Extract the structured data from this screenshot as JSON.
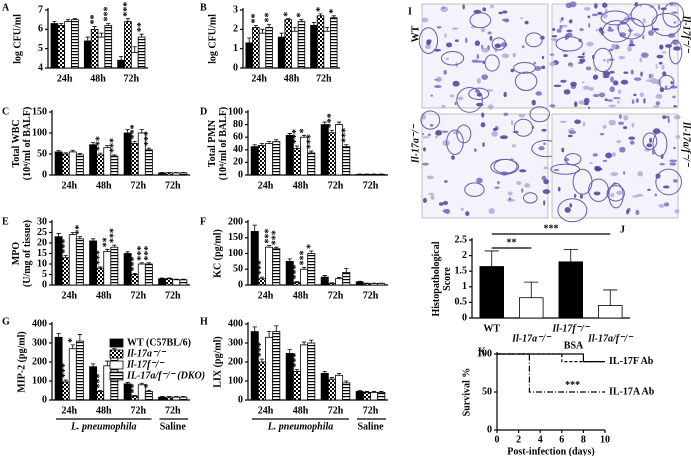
{
  "chart_data": [
    {
      "type": "bar",
      "label": "A",
      "y_label": [
        "log CFU/ml"
      ],
      "categories": [
        "24h",
        "48h",
        "72h"
      ],
      "ylim": [
        4,
        7
      ],
      "yticks": [
        4,
        5,
        6,
        7
      ],
      "series": [
        {
          "color": "#000000",
          "pattern": "solid",
          "values": [
            6.3,
            5.4,
            4.4
          ],
          "errors": [
            0.1,
            0.2,
            0.2
          ]
        },
        {
          "color": "#000000",
          "pattern": "check",
          "values": [
            6.2,
            6.0,
            6.4
          ],
          "errors": [
            0.1,
            0.15,
            0.15
          ],
          "stars": [
            null,
            "**",
            "***"
          ]
        },
        {
          "color": "#000000",
          "pattern": "none",
          "values": [
            6.4,
            5.6,
            4.8
          ],
          "errors": [
            0.1,
            0.2,
            0.3
          ]
        },
        {
          "color": "#000000",
          "pattern": "stripes",
          "values": [
            6.5,
            6.2,
            5.6
          ],
          "errors": [
            0.05,
            0.1,
            0.15
          ],
          "stars": [
            null,
            "***",
            "**"
          ]
        }
      ]
    },
    {
      "type": "bar",
      "label": "B",
      "y_label": [
        "log CFU/ml"
      ],
      "categories": [
        "24h",
        "48h",
        "72h"
      ],
      "ylim": [
        0,
        3
      ],
      "yticks": [
        0,
        1,
        2,
        3
      ],
      "series": [
        {
          "color": "#000000",
          "pattern": "solid",
          "values": [
            1.3,
            1.6,
            2.2
          ],
          "errors": [
            0.25,
            0.2,
            0.15
          ]
        },
        {
          "color": "#000000",
          "pattern": "check",
          "values": [
            2.1,
            2.5,
            2.7
          ],
          "errors": [
            0.1,
            0.05,
            0.1
          ],
          "stars": [
            "**",
            "*",
            "*"
          ]
        },
        {
          "color": "#000000",
          "pattern": "none",
          "values": [
            1.8,
            1.9,
            1.9
          ],
          "errors": [
            0.2,
            0.2,
            0.2
          ]
        },
        {
          "color": "#000000",
          "pattern": "stripes",
          "values": [
            2.1,
            2.4,
            2.6
          ],
          "errors": [
            0.15,
            0.1,
            0.1
          ],
          "stars": [
            "**",
            "*",
            "*"
          ]
        }
      ]
    },
    {
      "type": "bar",
      "label": "C",
      "y_label": [
        "Total WBC",
        "(10⁴/ml of BALF)"
      ],
      "categories": [
        "24h",
        "48h",
        "72h",
        "72h"
      ],
      "ylim": [
        0,
        150
      ],
      "yticks": [
        0,
        50,
        100,
        150
      ],
      "series": [
        {
          "color": "#000000",
          "pattern": "solid",
          "values": [
            55,
            72,
            100,
            5
          ],
          "errors": [
            3,
            5,
            8,
            1
          ]
        },
        {
          "color": "#000000",
          "pattern": "check",
          "values": [
            50,
            48,
            75,
            5
          ],
          "errors": [
            3,
            4,
            5,
            1
          ],
          "stars": [
            null,
            "***",
            "***",
            null
          ]
        },
        {
          "color": "#000000",
          "pattern": "none",
          "values": [
            55,
            65,
            100,
            5
          ],
          "errors": [
            4,
            5,
            8,
            1
          ]
        },
        {
          "color": "#000000",
          "pattern": "stripes",
          "values": [
            48,
            45,
            60,
            5
          ],
          "errors": [
            3,
            3,
            4,
            1
          ],
          "stars": [
            null,
            "***",
            "***",
            null
          ]
        }
      ]
    },
    {
      "type": "bar",
      "label": "D",
      "y_label": [
        "Total PMN",
        "(10⁴/ml of BALF)"
      ],
      "categories": [
        "24h",
        "48h",
        "72h",
        "72h"
      ],
      "ylim": [
        0,
        100
      ],
      "yticks": [
        0,
        20,
        40,
        60,
        80,
        100
      ],
      "series": [
        {
          "color": "#000000",
          "pattern": "solid",
          "values": [
            45,
            63,
            80,
            1
          ],
          "errors": [
            3,
            3,
            4,
            0.5
          ]
        },
        {
          "color": "#000000",
          "pattern": "check",
          "values": [
            47,
            42,
            67,
            1
          ],
          "errors": [
            3,
            4,
            4,
            0.5
          ],
          "stars": [
            null,
            "***",
            "***",
            null
          ]
        },
        {
          "color": "#000000",
          "pattern": "none",
          "values": [
            50,
            60,
            80,
            1
          ],
          "errors": [
            3,
            3,
            4,
            0.5
          ],
          "stars": [
            null,
            "*",
            null,
            null
          ]
        },
        {
          "color": "#000000",
          "pattern": "stripes",
          "values": [
            53,
            35,
            45,
            1
          ],
          "errors": [
            3,
            3,
            3,
            0.5
          ],
          "stars": [
            null,
            "***",
            "***",
            null
          ]
        }
      ]
    },
    {
      "type": "bar",
      "label": "E",
      "y_label": [
        "MPO",
        "(U/mg of tissue)"
      ],
      "categories": [
        "24h",
        "48h",
        "72h",
        "72h"
      ],
      "ylim": [
        0,
        30
      ],
      "yticks": [
        0,
        5,
        10,
        15,
        20,
        25,
        30
      ],
      "series": [
        {
          "color": "#000000",
          "pattern": "solid",
          "values": [
            23,
            21,
            15,
            3
          ],
          "errors": [
            1.5,
            1,
            0.8,
            0.3
          ]
        },
        {
          "color": "#000000",
          "pattern": "check",
          "values": [
            13,
            8,
            5,
            3
          ],
          "errors": [
            1,
            0.6,
            0.5,
            0.3
          ],
          "stars": [
            "***",
            "***",
            "***",
            null
          ]
        },
        {
          "color": "#000000",
          "pattern": "none",
          "values": [
            24,
            16,
            10,
            2.5
          ],
          "errors": [
            1,
            1,
            0.6,
            0.3
          ],
          "stars": [
            null,
            "**",
            "***",
            null
          ]
        },
        {
          "color": "#000000",
          "pattern": "stripes",
          "values": [
            22,
            18,
            10,
            2.5
          ],
          "errors": [
            1,
            1,
            0.6,
            0.3
          ],
          "stars": [
            "**",
            "***",
            "***",
            null
          ]
        }
      ]
    },
    {
      "type": "bar",
      "label": "F",
      "y_label": [
        "KC (pg/ml)"
      ],
      "categories": [
        "24h",
        "48h",
        "72h",
        "72h"
      ],
      "ylim": [
        0,
        200
      ],
      "yticks": [
        0,
        50,
        100,
        150,
        200
      ],
      "series": [
        {
          "color": "#000000",
          "pattern": "solid",
          "values": [
            170,
            75,
            25,
            10
          ],
          "errors": [
            20,
            8,
            5,
            2
          ]
        },
        {
          "color": "#000000",
          "pattern": "check",
          "values": [
            20,
            8,
            5,
            5
          ],
          "errors": [
            5,
            3,
            2,
            1
          ],
          "stars": [
            "***",
            "***",
            null,
            null
          ]
        },
        {
          "color": "#000000",
          "pattern": "none",
          "values": [
            120,
            50,
            20,
            5
          ],
          "errors": [
            5,
            6,
            4,
            1
          ],
          "stars": [
            "***",
            "***",
            null,
            null
          ]
        },
        {
          "color": "#000000",
          "pattern": "stripes",
          "values": [
            115,
            100,
            40,
            5
          ],
          "errors": [
            5,
            8,
            12,
            1
          ],
          "stars": [
            "***",
            "*",
            null,
            null
          ]
        }
      ]
    },
    {
      "type": "bar",
      "label": "G",
      "y_label": [
        "MIP-2 (pg/ml)"
      ],
      "categories": [
        "24h",
        "48h",
        "72h",
        "72h"
      ],
      "ylim": [
        0,
        400
      ],
      "yticks": [
        0,
        100,
        200,
        300,
        400
      ],
      "group_labels": [
        "L. pneumophila",
        "Saline"
      ],
      "legend": true,
      "series": [
        {
          "name": "WT (C57BL/6)",
          "color": "#000000",
          "pattern": "solid",
          "values": [
            330,
            175,
            85,
            15
          ],
          "errors": [
            20,
            15,
            8,
            3
          ]
        },
        {
          "name": "Il-17a⁻/⁻",
          "color": "#000000",
          "pattern": "check",
          "values": [
            95,
            45,
            20,
            15
          ],
          "errors": [
            10,
            5,
            4,
            3
          ],
          "stars": [
            "***",
            "***",
            "**",
            null
          ]
        },
        {
          "name": "Il-17f⁻/⁻",
          "color": "#000000",
          "pattern": "none",
          "values": [
            270,
            180,
            80,
            15
          ],
          "errors": [
            20,
            25,
            8,
            3
          ],
          "stars": [
            "*",
            null,
            null,
            null
          ]
        },
        {
          "name": "IL-17a/f⁻/⁻ (DKO)",
          "color": "#000000",
          "pattern": "stripes",
          "values": [
            310,
            230,
            45,
            15
          ],
          "errors": [
            35,
            40,
            6,
            3
          ],
          "stars": [
            null,
            null,
            "*",
            null
          ]
        }
      ]
    },
    {
      "type": "bar",
      "label": "H",
      "y_label": [
        "LIX (pg/ml)"
      ],
      "categories": [
        "24h",
        "48h",
        "72h",
        "72h"
      ],
      "ylim": [
        0,
        400
      ],
      "yticks": [
        0,
        100,
        200,
        300,
        400
      ],
      "group_labels": [
        "L. pneumophila",
        "Saline"
      ],
      "series": [
        {
          "color": "#000000",
          "pattern": "solid",
          "values": [
            360,
            245,
            140,
            45
          ],
          "errors": [
            25,
            20,
            10,
            5
          ]
        },
        {
          "color": "#000000",
          "pattern": "check",
          "values": [
            200,
            150,
            110,
            40
          ],
          "errors": [
            15,
            10,
            8,
            5
          ],
          "stars": [
            "***",
            "***",
            null,
            null
          ]
        },
        {
          "color": "#000000",
          "pattern": "none",
          "values": [
            330,
            290,
            130,
            40
          ],
          "errors": [
            30,
            15,
            10,
            5
          ]
        },
        {
          "color": "#000000",
          "pattern": "stripes",
          "values": [
            360,
            300,
            90,
            40
          ],
          "errors": [
            30,
            15,
            10,
            5
          ]
        }
      ]
    },
    {
      "type": "histology",
      "label": "I",
      "images": [
        "WT",
        "Il-17f⁻/⁻",
        "Il-17a⁻/⁻",
        "Il-17a/f⁻/⁻"
      ]
    },
    {
      "type": "bar",
      "label": "J",
      "y_label": [
        "Histopathological",
        "Score"
      ],
      "categories": [
        "WT",
        "Il-17a⁻/⁻",
        "Il-17f⁻/⁻",
        "Il-17a/f⁻/⁻"
      ],
      "ylim": [
        0,
        2.5
      ],
      "yticks": [
        0,
        0.5,
        1,
        1.5,
        2,
        2.5
      ],
      "significance": [
        "**",
        "***"
      ],
      "series": [
        {
          "color": "#000000",
          "colors": [
            "#000000",
            "#ffffff",
            "#000000",
            "#ffffff"
          ],
          "values": [
            1.65,
            0.65,
            1.8,
            0.4
          ],
          "errors": [
            0.5,
            0.5,
            0.4,
            0.5
          ]
        }
      ]
    },
    {
      "type": "line",
      "label": "K",
      "y_label": [
        "Survival %"
      ],
      "x_label": "Post-infection (days)",
      "x": [
        0,
        3,
        3,
        6,
        6,
        8,
        8,
        10
      ],
      "xlim": [
        0,
        10
      ],
      "xticks": [
        0,
        2,
        4,
        6,
        8,
        10
      ],
      "ylim": [
        0,
        100
      ],
      "yticks": [
        0,
        50,
        100
      ],
      "annotation": "***",
      "series": [
        {
          "name": "IL-17F Ab",
          "color": "#000000",
          "dash": "none",
          "values": [
            100,
            100,
            100,
            100,
            100,
            100,
            90,
            90
          ]
        },
        {
          "name": "BSA",
          "color": "#000000",
          "dash": "3 2",
          "values": [
            100,
            100,
            100,
            100,
            90,
            90,
            90,
            90
          ]
        },
        {
          "name": "IL-17A Ab",
          "color": "#000000",
          "dash": "6 2 1 2",
          "values": [
            100,
            100,
            50,
            50,
            50,
            50,
            50,
            50
          ]
        }
      ]
    }
  ]
}
